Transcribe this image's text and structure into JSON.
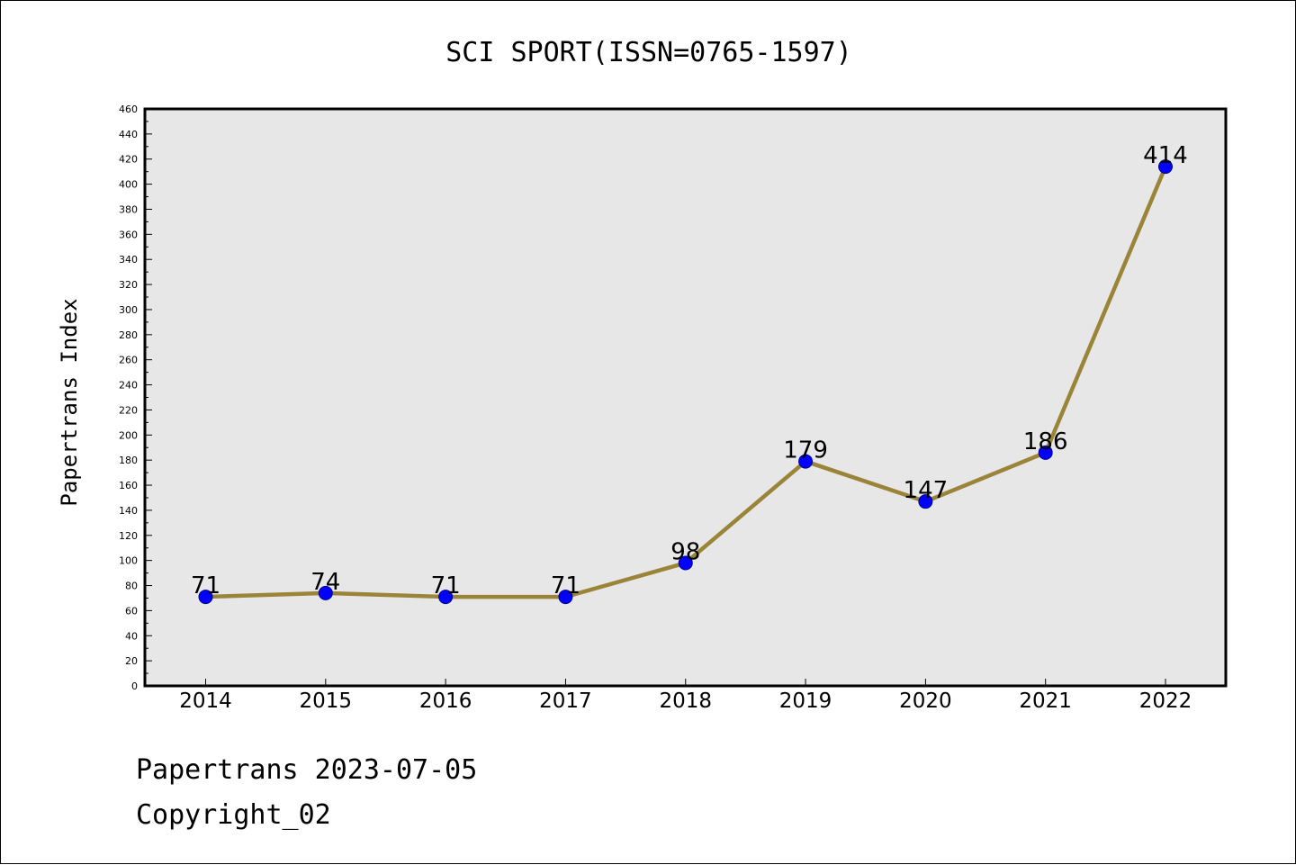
{
  "footer": {
    "line1": "Papertrans 2023-07-05",
    "line2": "Copyright_02"
  },
  "colors": {
    "plot_background": "#e7e7e7",
    "line": "#9a8438",
    "marker": "#0000ff",
    "marker_edge": "#00008b"
  },
  "chart_data": {
    "type": "line",
    "title": "SCI SPORT(ISSN=0765-1597)",
    "xlabel": "",
    "ylabel": "Papertrans Index",
    "categories": [
      "2014",
      "2015",
      "2016",
      "2017",
      "2018",
      "2019",
      "2020",
      "2021",
      "2022"
    ],
    "values": [
      71,
      74,
      71,
      71,
      98,
      179,
      147,
      186,
      414
    ],
    "data_labels": [
      "71",
      "74",
      "71",
      "71",
      "98",
      "179",
      "147",
      "186",
      "414"
    ],
    "ylim": [
      0,
      460
    ],
    "yticks": [
      0,
      20,
      40,
      60,
      80,
      100,
      120,
      140,
      160,
      180,
      200,
      220,
      240,
      260,
      280,
      300,
      320,
      340,
      360,
      380,
      400,
      420,
      440,
      460
    ],
    "grid": false,
    "legend": "none"
  }
}
